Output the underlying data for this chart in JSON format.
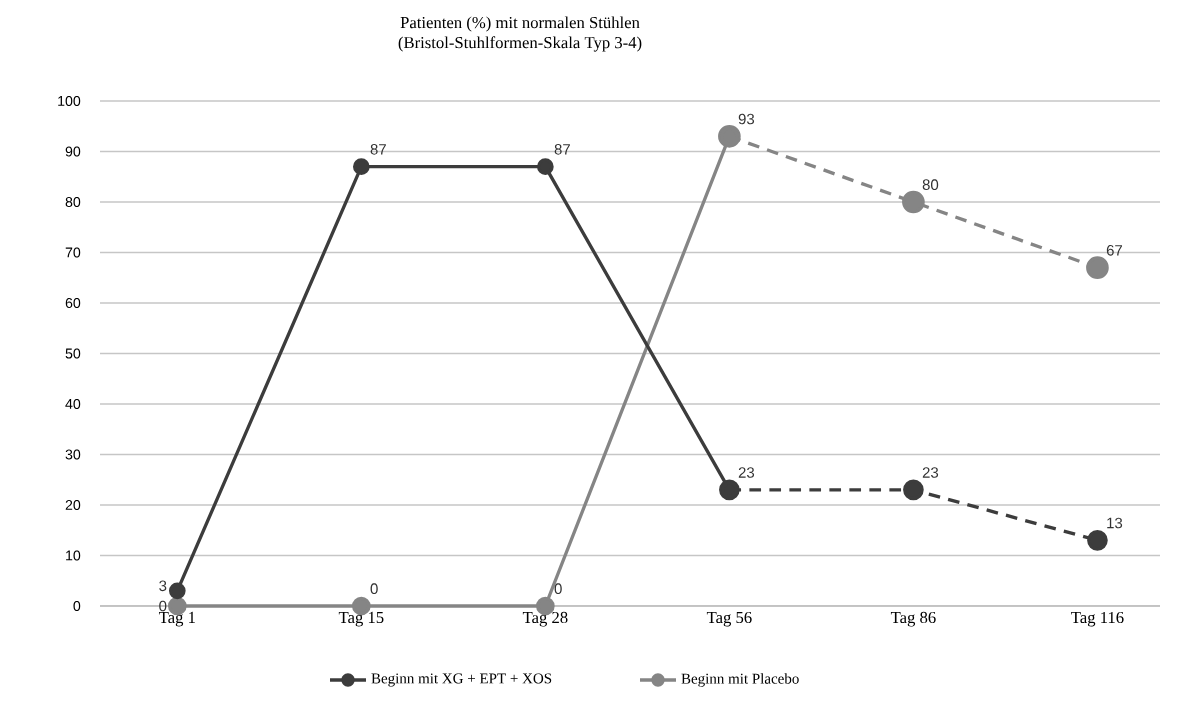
{
  "chart_data": {
    "type": "line",
    "title": "Patienten (%) mit normalen Stühlen",
    "subtitle": "(Bristol-Stuhlformen-Skala Typ 3-4)",
    "categories": [
      "Tag 1",
      "Tag 15",
      "Tag 28",
      "Tag 56",
      "Tag 86",
      "Tag 116"
    ],
    "series": [
      {
        "name": "Beginn mit XG + EPT + XOS",
        "color": "#3c3c3c",
        "line_style": "solid",
        "values": [
          3,
          87,
          87,
          23,
          null,
          null
        ],
        "value_labels": [
          "3",
          "87",
          "87",
          "23",
          null,
          null
        ]
      },
      {
        "name": "Beginn mit Placebo",
        "color": "#858585",
        "line_style": "solid",
        "values": [
          0,
          0,
          0,
          93,
          null,
          null
        ],
        "value_labels": [
          "0",
          "0",
          "0",
          "93",
          null,
          null
        ]
      },
      {
        "color": "#3c3c3c",
        "line_style": "dashed",
        "values": [
          null,
          null,
          null,
          23,
          23,
          13
        ],
        "value_labels": [
          null,
          null,
          null,
          null,
          "23",
          "13"
        ]
      },
      {
        "color": "#858585",
        "line_style": "dashed",
        "values": [
          null,
          null,
          null,
          93,
          80,
          67
        ],
        "value_labels": [
          null,
          null,
          null,
          null,
          "80",
          "67"
        ]
      }
    ],
    "ylim": [
      0,
      100
    ],
    "yticks": [
      0,
      10,
      20,
      30,
      40,
      50,
      60,
      70,
      80,
      90,
      100
    ],
    "grid": "y",
    "legend": "bottom",
    "marker": "circle"
  }
}
